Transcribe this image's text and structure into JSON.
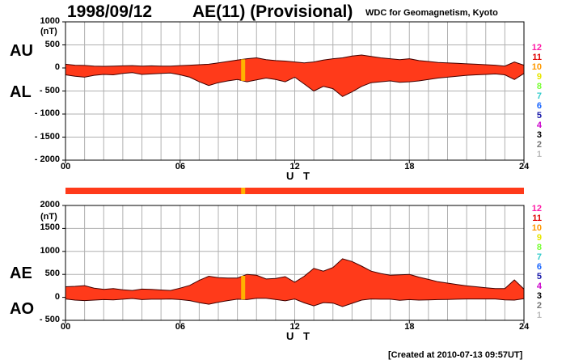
{
  "header": {
    "date": "1998/09/12",
    "title": "AE(11) (Provisional)",
    "source": "WDC for Geomagnetism, Kyoto",
    "created": "[Created at 2010-07-13 09:57UT]"
  },
  "hour_legend": {
    "labels": [
      "12",
      "11",
      "10",
      "9",
      "8",
      "7",
      "6",
      "5",
      "4",
      "3",
      "2",
      "1"
    ],
    "colors": [
      "#ff1aa6",
      "#e00000",
      "#ff9900",
      "#e6e600",
      "#77ff33",
      "#33cccc",
      "#1a66ff",
      "#1a1aaa",
      "#cc00cc",
      "#000000",
      "#777777",
      "#bbbbbb"
    ]
  },
  "colors": {
    "fill": "#ff3a1a",
    "highlight": "#ffb300",
    "grid": "#b0b0b0",
    "axis": "#000000"
  },
  "chart_data": [
    {
      "type": "area",
      "panel": "AU/AL",
      "left_labels": [
        "AU",
        "AL"
      ],
      "unit": "(nT)",
      "xlabel": "U T",
      "x_ticks": [
        "00",
        "06",
        "12",
        "18",
        "24"
      ],
      "xlim": [
        0,
        24
      ],
      "ylim": [
        -2000,
        1000
      ],
      "y_ticks": [
        1000,
        500,
        0,
        -500,
        -1000,
        -1500,
        -2000
      ],
      "y_tick_labels": [
        "1000",
        "500",
        "0",
        "- 500",
        "- 1000",
        "- 1500",
        "- 2000"
      ],
      "x": [
        0,
        0.5,
        1,
        1.5,
        2,
        2.5,
        3,
        3.5,
        4,
        4.5,
        5,
        5.5,
        6,
        6.5,
        7,
        7.5,
        8,
        8.5,
        9,
        9.5,
        10,
        10.5,
        11,
        11.5,
        12,
        12.5,
        13,
        13.5,
        14,
        14.5,
        15,
        15.5,
        16,
        16.5,
        17,
        17.5,
        18,
        18.5,
        19,
        19.5,
        20,
        20.5,
        21,
        21.5,
        22,
        22.5,
        23,
        23.5,
        24
      ],
      "series": [
        {
          "name": "AU",
          "values": [
            80,
            60,
            55,
            40,
            35,
            40,
            45,
            50,
            40,
            45,
            40,
            40,
            50,
            60,
            70,
            80,
            110,
            140,
            170,
            200,
            220,
            180,
            160,
            150,
            130,
            110,
            130,
            170,
            200,
            220,
            260,
            280,
            250,
            220,
            200,
            180,
            200,
            160,
            140,
            120,
            110,
            100,
            90,
            80,
            70,
            60,
            40,
            130,
            60
          ]
        },
        {
          "name": "AL",
          "values": [
            -150,
            -180,
            -200,
            -160,
            -140,
            -150,
            -120,
            -100,
            -140,
            -130,
            -120,
            -110,
            -150,
            -200,
            -300,
            -380,
            -320,
            -280,
            -250,
            -300,
            -260,
            -220,
            -250,
            -300,
            -200,
            -350,
            -500,
            -400,
            -450,
            -620,
            -520,
            -400,
            -320,
            -300,
            -280,
            -310,
            -300,
            -280,
            -250,
            -220,
            -200,
            -180,
            -160,
            -150,
            -140,
            -130,
            -150,
            -250,
            -120
          ]
        }
      ],
      "highlight_hour": 9.3
    },
    {
      "type": "area",
      "panel": "AE/AO",
      "left_labels": [
        "AE",
        "AO"
      ],
      "unit": "(nT)",
      "xlabel": "U T",
      "x_ticks": [
        "00",
        "06",
        "12",
        "18",
        "24"
      ],
      "xlim": [
        0,
        24
      ],
      "ylim": [
        -500,
        2000
      ],
      "y_ticks": [
        2000,
        1500,
        1000,
        500,
        0,
        -500
      ],
      "y_tick_labels": [
        "2000",
        "1500",
        "1000",
        "500",
        "0",
        "- 500"
      ],
      "x": [
        0,
        0.5,
        1,
        1.5,
        2,
        2.5,
        3,
        3.5,
        4,
        4.5,
        5,
        5.5,
        6,
        6.5,
        7,
        7.5,
        8,
        8.5,
        9,
        9.5,
        10,
        10.5,
        11,
        11.5,
        12,
        12.5,
        13,
        13.5,
        14,
        14.5,
        15,
        15.5,
        16,
        16.5,
        17,
        17.5,
        18,
        18.5,
        19,
        19.5,
        20,
        20.5,
        21,
        21.5,
        22,
        22.5,
        23,
        23.5,
        24
      ],
      "series": [
        {
          "name": "AE",
          "values": [
            230,
            240,
            255,
            200,
            175,
            190,
            165,
            150,
            180,
            175,
            160,
            150,
            200,
            260,
            370,
            460,
            430,
            420,
            420,
            500,
            480,
            400,
            410,
            450,
            330,
            460,
            630,
            570,
            650,
            840,
            780,
            680,
            570,
            520,
            480,
            490,
            500,
            440,
            390,
            340,
            310,
            280,
            250,
            230,
            210,
            190,
            190,
            380,
            180
          ]
        },
        {
          "name": "AO",
          "values": [
            -35,
            -60,
            -70,
            -60,
            -50,
            -55,
            -40,
            -25,
            -50,
            -40,
            -40,
            -35,
            -50,
            -70,
            -115,
            -150,
            -105,
            -70,
            -40,
            -50,
            -20,
            -20,
            -45,
            -75,
            -35,
            -120,
            -185,
            -115,
            -125,
            -200,
            -130,
            -60,
            -35,
            -40,
            -40,
            -65,
            -50,
            -60,
            -55,
            -50,
            -45,
            -40,
            -35,
            -35,
            -35,
            -35,
            -55,
            -60,
            -30
          ]
        }
      ],
      "highlight_hour": 9.3
    }
  ],
  "panel_labels": {
    "top_upper": "AU",
    "top_lower": "AL",
    "bottom_upper": "AE",
    "bottom_lower": "AO"
  }
}
